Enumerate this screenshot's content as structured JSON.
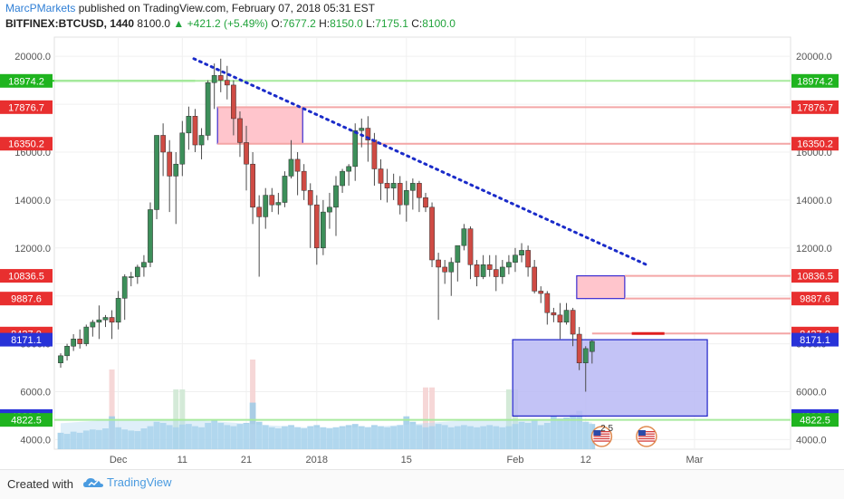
{
  "header": {
    "author": "MarcPMarkets",
    "published_text": "published on TradingView.com, February 07, 2018 05:31 EST",
    "symbol": "BITFINEX:BTCUSD, 1440",
    "last": "8100.0",
    "change": "+421.2 (+5.49%)",
    "o_label": "O:",
    "o_value": "7677.2",
    "h_label": "H:",
    "h_value": "8150.0",
    "l_label": "L:",
    "l_value": "7175.1",
    "c_label": "C:",
    "c_value": "8100.0"
  },
  "footer": {
    "created_with": "Created with",
    "brand": "TradingView"
  },
  "icons": {
    "flag_badge_count": "2 5"
  },
  "colors": {
    "up": "#3d8f5a",
    "down": "#cf4b44",
    "resistance_line": "#f4a6a6",
    "support_line": "#a8ea9e",
    "green_level": "#25d025",
    "trend_line": "#1a2bc9",
    "supply_zone": "#ffc5cc",
    "demand_zone": "#b8b8f5",
    "volume": "#9ccbe8"
  },
  "chart_data": {
    "type": "candlestick",
    "ylim": [
      3600,
      20800
    ],
    "y_scale": "linear",
    "grid": true,
    "y_ticks": [
      4000,
      6000,
      8000,
      10000,
      12000,
      14000,
      16000,
      18000,
      20000
    ],
    "y_tick_labels": [
      "4000.0",
      "6000.0",
      "8000.0",
      "10000.0",
      "12000.0",
      "14000.0",
      "16000.0",
      "18000.0",
      "20000.0"
    ],
    "x_tick_labels": [
      {
        "label": "Dec",
        "index": 9
      },
      {
        "label": "11",
        "index": 19
      },
      {
        "label": "21",
        "index": 29
      },
      {
        "label": "2018",
        "index": 40
      },
      {
        "label": "15",
        "index": 54
      },
      {
        "label": "Feb",
        "index": 71
      },
      {
        "label": "12",
        "index": 82
      },
      {
        "label": "Mar",
        "index": 99
      }
    ],
    "candles": [
      {
        "o": 7200,
        "h": 7600,
        "l": 7000,
        "c": 7500
      },
      {
        "o": 7500,
        "h": 8000,
        "l": 7300,
        "c": 7900
      },
      {
        "o": 7900,
        "h": 8400,
        "l": 7700,
        "c": 8200
      },
      {
        "o": 8200,
        "h": 8600,
        "l": 7800,
        "c": 8000
      },
      {
        "o": 8000,
        "h": 8800,
        "l": 7900,
        "c": 8700
      },
      {
        "o": 8700,
        "h": 9000,
        "l": 8300,
        "c": 8900
      },
      {
        "o": 8900,
        "h": 9600,
        "l": 8200,
        "c": 9000
      },
      {
        "o": 9000,
        "h": 9200,
        "l": 8700,
        "c": 9100
      },
      {
        "o": 9100,
        "h": 9400,
        "l": 8200,
        "c": 8900
      },
      {
        "o": 8900,
        "h": 10200,
        "l": 8600,
        "c": 9900
      },
      {
        "o": 9900,
        "h": 10900,
        "l": 9000,
        "c": 10800
      },
      {
        "o": 10800,
        "h": 11000,
        "l": 10400,
        "c": 10800
      },
      {
        "o": 10800,
        "h": 11300,
        "l": 10500,
        "c": 11200
      },
      {
        "o": 11200,
        "h": 11700,
        "l": 10800,
        "c": 11400
      },
      {
        "o": 11400,
        "h": 13900,
        "l": 11200,
        "c": 13600
      },
      {
        "o": 13600,
        "h": 16700,
        "l": 13200,
        "c": 16700
      },
      {
        "o": 16700,
        "h": 17200,
        "l": 15000,
        "c": 16000
      },
      {
        "o": 16000,
        "h": 16500,
        "l": 13500,
        "c": 15000
      },
      {
        "o": 15000,
        "h": 16000,
        "l": 13000,
        "c": 15500
      },
      {
        "o": 15500,
        "h": 17300,
        "l": 15000,
        "c": 16800
      },
      {
        "o": 16800,
        "h": 17900,
        "l": 16100,
        "c": 17500
      },
      {
        "o": 17500,
        "h": 17800,
        "l": 16000,
        "c": 16300
      },
      {
        "o": 16300,
        "h": 17000,
        "l": 15700,
        "c": 16700
      },
      {
        "o": 16700,
        "h": 19000,
        "l": 16500,
        "c": 18900
      },
      {
        "o": 18900,
        "h": 19700,
        "l": 17800,
        "c": 19200
      },
      {
        "o": 19200,
        "h": 19900,
        "l": 18500,
        "c": 19000
      },
      {
        "o": 19000,
        "h": 19600,
        "l": 18200,
        "c": 18800
      },
      {
        "o": 18800,
        "h": 19000,
        "l": 16700,
        "c": 17400
      },
      {
        "o": 17400,
        "h": 17700,
        "l": 15800,
        "c": 16400
      },
      {
        "o": 16400,
        "h": 17100,
        "l": 14400,
        "c": 15500
      },
      {
        "o": 15500,
        "h": 16000,
        "l": 13000,
        "c": 13700
      },
      {
        "o": 13700,
        "h": 14200,
        "l": 10800,
        "c": 13300
      },
      {
        "o": 13300,
        "h": 14500,
        "l": 12800,
        "c": 14200
      },
      {
        "o": 14200,
        "h": 14500,
        "l": 13500,
        "c": 13800
      },
      {
        "o": 13800,
        "h": 14300,
        "l": 13400,
        "c": 13900
      },
      {
        "o": 13900,
        "h": 15200,
        "l": 13700,
        "c": 15000
      },
      {
        "o": 15000,
        "h": 16500,
        "l": 14900,
        "c": 15700
      },
      {
        "o": 15700,
        "h": 16000,
        "l": 14200,
        "c": 15200
      },
      {
        "o": 15200,
        "h": 15500,
        "l": 14000,
        "c": 14400
      },
      {
        "o": 14400,
        "h": 14700,
        "l": 12000,
        "c": 13800
      },
      {
        "o": 13800,
        "h": 14200,
        "l": 11300,
        "c": 12000
      },
      {
        "o": 12000,
        "h": 14000,
        "l": 11700,
        "c": 13500
      },
      {
        "o": 13500,
        "h": 14300,
        "l": 12800,
        "c": 13700
      },
      {
        "o": 13700,
        "h": 15000,
        "l": 12500,
        "c": 14600
      },
      {
        "o": 14600,
        "h": 15300,
        "l": 14300,
        "c": 15200
      },
      {
        "o": 15200,
        "h": 15500,
        "l": 14600,
        "c": 15400
      },
      {
        "o": 15400,
        "h": 17200,
        "l": 14800,
        "c": 16900
      },
      {
        "o": 16900,
        "h": 17400,
        "l": 16200,
        "c": 17000
      },
      {
        "o": 17000,
        "h": 17500,
        "l": 15600,
        "c": 16500
      },
      {
        "o": 16500,
        "h": 16800,
        "l": 14600,
        "c": 15300
      },
      {
        "o": 15300,
        "h": 15700,
        "l": 14000,
        "c": 14700
      },
      {
        "o": 14700,
        "h": 15300,
        "l": 13900,
        "c": 14500
      },
      {
        "o": 14500,
        "h": 15100,
        "l": 14000,
        "c": 14700
      },
      {
        "o": 14700,
        "h": 15000,
        "l": 13400,
        "c": 13800
      },
      {
        "o": 13800,
        "h": 14800,
        "l": 13100,
        "c": 14400
      },
      {
        "o": 14400,
        "h": 14900,
        "l": 13600,
        "c": 14700
      },
      {
        "o": 14700,
        "h": 14800,
        "l": 13500,
        "c": 14100
      },
      {
        "o": 14100,
        "h": 14300,
        "l": 13500,
        "c": 13700
      },
      {
        "o": 13700,
        "h": 13900,
        "l": 11200,
        "c": 11500
      },
      {
        "o": 11500,
        "h": 11800,
        "l": 9000,
        "c": 11200
      },
      {
        "o": 11200,
        "h": 11500,
        "l": 10500,
        "c": 11000
      },
      {
        "o": 11000,
        "h": 11600,
        "l": 10000,
        "c": 11400
      },
      {
        "o": 11400,
        "h": 12000,
        "l": 10600,
        "c": 12100
      },
      {
        "o": 12100,
        "h": 13000,
        "l": 11900,
        "c": 12800
      },
      {
        "o": 12800,
        "h": 12900,
        "l": 10700,
        "c": 11300
      },
      {
        "o": 11300,
        "h": 11500,
        "l": 10400,
        "c": 10800
      },
      {
        "o": 10800,
        "h": 11700,
        "l": 10700,
        "c": 11300
      },
      {
        "o": 11300,
        "h": 11700,
        "l": 10800,
        "c": 11100
      },
      {
        "o": 11100,
        "h": 11700,
        "l": 10200,
        "c": 10800
      },
      {
        "o": 10800,
        "h": 11500,
        "l": 10500,
        "c": 11200
      },
      {
        "o": 11200,
        "h": 11700,
        "l": 10900,
        "c": 11400
      },
      {
        "o": 11400,
        "h": 12000,
        "l": 11000,
        "c": 11700
      },
      {
        "o": 11700,
        "h": 12200,
        "l": 11400,
        "c": 11900
      },
      {
        "o": 11900,
        "h": 12100,
        "l": 10800,
        "c": 11200
      },
      {
        "o": 11200,
        "h": 11500,
        "l": 10100,
        "c": 10200
      },
      {
        "o": 10200,
        "h": 10400,
        "l": 9700,
        "c": 10100
      },
      {
        "o": 10100,
        "h": 10200,
        "l": 8800,
        "c": 9300
      },
      {
        "o": 9300,
        "h": 9500,
        "l": 8900,
        "c": 9200
      },
      {
        "o": 9200,
        "h": 9700,
        "l": 8200,
        "c": 8900
      },
      {
        "o": 8900,
        "h": 9700,
        "l": 8800,
        "c": 9400
      },
      {
        "o": 9400,
        "h": 9500,
        "l": 7900,
        "c": 8400
      },
      {
        "o": 8400,
        "h": 8700,
        "l": 6900,
        "c": 7200
      },
      {
        "o": 7200,
        "h": 7900,
        "l": 6000,
        "c": 7800
      },
      {
        "o": 7677.2,
        "h": 8150,
        "l": 7175.1,
        "c": 8100
      }
    ],
    "volumes": [
      0.3,
      0.28,
      0.32,
      0.3,
      0.34,
      0.36,
      0.35,
      0.38,
      0.6,
      0.4,
      0.36,
      0.34,
      0.33,
      0.38,
      0.42,
      0.5,
      0.48,
      0.44,
      0.4,
      0.45,
      0.46,
      0.42,
      0.4,
      0.48,
      0.52,
      0.48,
      0.44,
      0.42,
      0.46,
      0.48,
      0.85,
      0.5,
      0.44,
      0.4,
      0.38,
      0.42,
      0.44,
      0.4,
      0.38,
      0.42,
      0.44,
      0.4,
      0.38,
      0.4,
      0.42,
      0.44,
      0.46,
      0.42,
      0.4,
      0.44,
      0.42,
      0.4,
      0.42,
      0.44,
      0.6,
      0.5,
      0.44,
      0.4,
      0.42,
      0.46,
      0.44,
      0.4,
      0.42,
      0.44,
      0.42,
      0.4,
      0.42,
      0.44,
      0.42,
      0.4,
      0.42,
      0.46,
      0.5,
      0.48,
      0.52,
      0.44,
      0.48,
      0.6,
      0.56,
      0.58,
      0.64,
      0.7,
      0.5,
      0.46
    ],
    "tall_volume_bars": [
      {
        "index": 8,
        "value": 0.8
      },
      {
        "index": 18,
        "value": 0.6
      },
      {
        "index": 19,
        "value": 0.6
      },
      {
        "index": 30,
        "value": 0.9
      },
      {
        "index": 70,
        "value": 0.6
      },
      {
        "index": 71,
        "value": 0.6
      },
      {
        "index": 57,
        "value": 0.62
      },
      {
        "index": 58,
        "value": 0.62
      }
    ],
    "horizontal_levels": [
      {
        "value": 18974.2,
        "label": "18974.2",
        "kind": "green_level",
        "x_from_index": -3,
        "x_to_index": 21
      },
      {
        "value": 18974.2,
        "label": "18974.2",
        "kind": "support_line"
      },
      {
        "value": 17876.7,
        "label": "17876.7",
        "kind": "resistance_line"
      },
      {
        "value": 16350.2,
        "label": "16350.2",
        "kind": "resistance_line"
      },
      {
        "value": 10836.5,
        "label": "10836.5",
        "kind": "resistance_line"
      },
      {
        "value": 9887.6,
        "label": "9887.6",
        "kind": "resistance_line"
      },
      {
        "value": 8427.0,
        "label": "8427.0",
        "kind": "resistance_line"
      },
      {
        "value": 8171.1,
        "label": "8171.1",
        "kind": "demand_top"
      },
      {
        "value": 4983.9,
        "label": "4983.9",
        "kind": "demand_bottom"
      },
      {
        "value": 4822.5,
        "label": "4822.5",
        "kind": "support_line"
      }
    ],
    "left_axis_labels": [
      {
        "value": 18974.2,
        "label": "18974.2",
        "color": "#1fb41f"
      },
      {
        "value": 17876.7,
        "label": "17876.7",
        "color": "#e82f2f"
      },
      {
        "value": 16350.2,
        "label": "16350.2",
        "color": "#e82f2f"
      },
      {
        "value": 10836.5,
        "label": "10836.5",
        "color": "#e82f2f"
      },
      {
        "value": 9887.6,
        "label": "9887.6",
        "color": "#e82f2f"
      },
      {
        "value": 8427.0,
        "label": "8427.0",
        "color": "#e82f2f"
      },
      {
        "value": 8171.1,
        "label": "8171.1",
        "color": "#2833d8"
      },
      {
        "value": 4983.9,
        "label": "4983.9",
        "color": "#2833d8"
      },
      {
        "value": 4822.5,
        "label": "4822.5",
        "color": "#1fb41f"
      }
    ],
    "supply_zones": [
      {
        "x_from_index": 24.5,
        "x_to_index": 37.8,
        "top": 17876.7,
        "bottom": 16350.2
      },
      {
        "x_from_index": 80.6,
        "x_to_index": 88.1,
        "top": 10836.5,
        "bottom": 9887.6
      }
    ],
    "demand_zones": [
      {
        "x_from_index": 70.6,
        "x_to_index": 101,
        "top": 8171.1,
        "bottom": 4983.9
      }
    ],
    "trend_line": {
      "from": {
        "index": 20.8,
        "value": 19900
      },
      "to": {
        "index": 91.5,
        "value": 11300
      }
    },
    "red_marker": {
      "value": 8427.0,
      "x_from_index": 89.2,
      "x_to_index": 94.3
    }
  }
}
